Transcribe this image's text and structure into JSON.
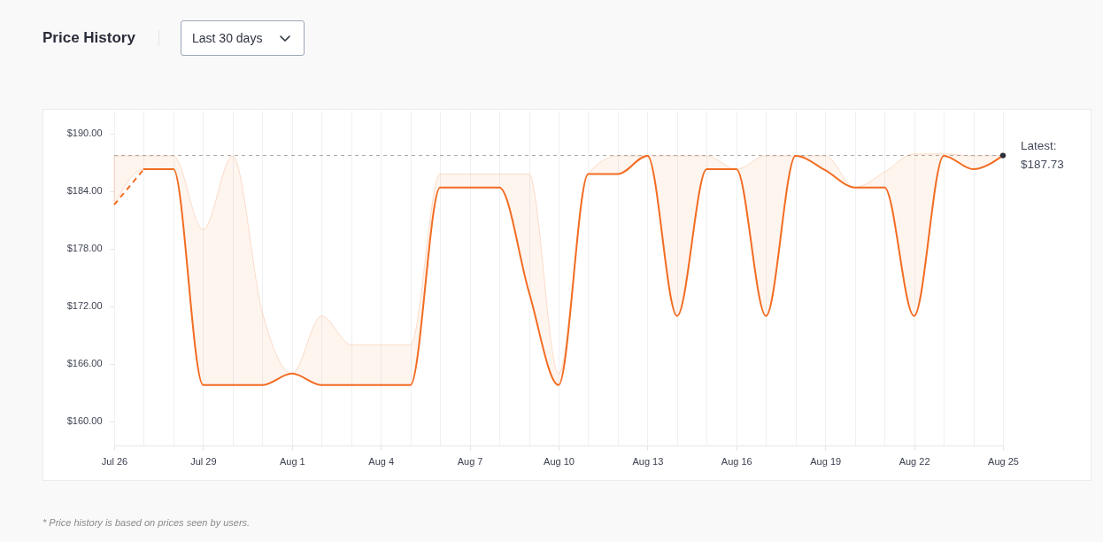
{
  "chart_data": {
    "type": "line",
    "title": "Price History",
    "subtitle": "Last 30 days",
    "annotations": [
      "* Price history is based on prices seen by users."
    ],
    "x": [
      "--07-26",
      "--07-27",
      "--07-28",
      "--07-29",
      "--07-30",
      "--07-31",
      "--08-01",
      "--08-02",
      "--08-03",
      "--08-04",
      "--08-05",
      "--08-06",
      "--08-07",
      "--08-08",
      "--08-09",
      "--08-10",
      "--08-11",
      "--08-12",
      "--08-13",
      "--08-14",
      "--08-15",
      "--08-16",
      "--08-17",
      "--08-18",
      "--08-19",
      "--08-20",
      "--08-21",
      "--08-22",
      "--08-23",
      "--08-24",
      "--08-25"
    ],
    "series": [
      {
        "color": "#f26c22",
        "values": [
          null,
          186.3,
          186.3,
          163.8,
          163.8,
          163.8,
          165.0,
          163.8,
          163.8,
          163.8,
          163.8,
          184.4,
          184.4,
          184.4,
          173.5,
          163.8,
          185.8,
          185.8,
          187.7,
          171.0,
          186.3,
          186.3,
          171.0,
          187.7,
          186.2,
          184.4,
          184.4,
          171.0,
          187.7,
          186.3,
          187.73
        ],
        "lower": [
          182.6,
          186.3,
          186.3,
          163.8,
          163.8,
          163.8,
          165.0,
          163.8,
          163.8,
          163.8,
          163.8,
          184.4,
          184.4,
          184.4,
          173.5,
          163.8,
          185.8,
          185.8,
          187.7,
          171.0,
          186.3,
          186.3,
          171.0,
          187.7,
          186.2,
          184.4,
          184.4,
          171.0,
          187.7,
          186.3,
          187.73
        ],
        "upper": [
          187.7,
          187.7,
          187.7,
          180.0,
          187.7,
          171.4,
          165.0,
          171.0,
          168.0,
          168.0,
          168.0,
          185.8,
          185.8,
          185.8,
          185.8,
          165.0,
          185.8,
          187.7,
          187.7,
          187.7,
          187.7,
          186.3,
          187.7,
          187.7,
          187.7,
          184.4,
          186.0,
          187.9,
          187.9,
          187.7,
          187.73
        ]
      },
      {
        "color": "#f26c22",
        "line_style": "dashed",
        "x": [
          "--07-26",
          "--07-27"
        ],
        "values": [
          182.6,
          186.3
        ]
      },
      {
        "type": "scatter",
        "color": "#2c2e3a",
        "marker": "circle",
        "x": [
          "--08-25"
        ],
        "values": [
          187.73
        ]
      }
    ],
    "xlim": [
      "--07-26",
      "--08-25"
    ],
    "xticks": [
      {
        "value": "--07-26",
        "label": "Jul 26"
      },
      {
        "value": "--07-27",
        "label": null
      },
      {
        "value": "--07-28",
        "label": null
      },
      {
        "value": "--07-29",
        "label": "Jul 29"
      },
      {
        "value": "--07-30",
        "label": null
      },
      {
        "value": "--07-31",
        "label": null
      },
      {
        "value": "--08-01",
        "label": "Aug 1"
      },
      {
        "value": "--08-02",
        "label": null
      },
      {
        "value": "--08-03",
        "label": null
      },
      {
        "value": "--08-04",
        "label": "Aug 4"
      },
      {
        "value": "--08-05",
        "label": null
      },
      {
        "value": "--08-06",
        "label": null
      },
      {
        "value": "--08-07",
        "label": "Aug 7"
      },
      {
        "value": "--08-08",
        "label": null
      },
      {
        "value": "--08-09",
        "label": null
      },
      {
        "value": "--08-10",
        "label": "Aug 10"
      },
      {
        "value": "--08-11",
        "label": null
      },
      {
        "value": "--08-12",
        "label": null
      },
      {
        "value": "--08-13",
        "label": "Aug 13"
      },
      {
        "value": "--08-14",
        "label": null
      },
      {
        "value": "--08-15",
        "label": null
      },
      {
        "value": "--08-16",
        "label": "Aug 16"
      },
      {
        "value": "--08-17",
        "label": null
      },
      {
        "value": "--08-18",
        "label": null
      },
      {
        "value": "--08-19",
        "label": "Aug 19"
      },
      {
        "value": "--08-20",
        "label": null
      },
      {
        "value": "--08-21",
        "label": null
      },
      {
        "value": "--08-22",
        "label": "Aug 22"
      },
      {
        "value": "--08-23",
        "label": null
      },
      {
        "value": "--08-24",
        "label": null
      },
      {
        "value": "--08-25",
        "label": "Aug 25"
      }
    ],
    "ylim": [
      157.5,
      192.4
    ],
    "yticks": [
      {
        "value": 160,
        "label": "$160.00"
      },
      {
        "value": 166,
        "label": "$166.00"
      },
      {
        "value": 172,
        "label": "$172.00"
      },
      {
        "value": 178,
        "label": "$178.00"
      },
      {
        "value": 184,
        "label": "$184.00"
      },
      {
        "value": 190,
        "label": "$190.00"
      }
    ],
    "ref_lines": [
      {
        "axis": "y",
        "value": 187.73,
        "label": "Latest: $187.73",
        "color": "#aaa39e",
        "line_style": "dashed"
      }
    ],
    "grid": "x"
  }
}
